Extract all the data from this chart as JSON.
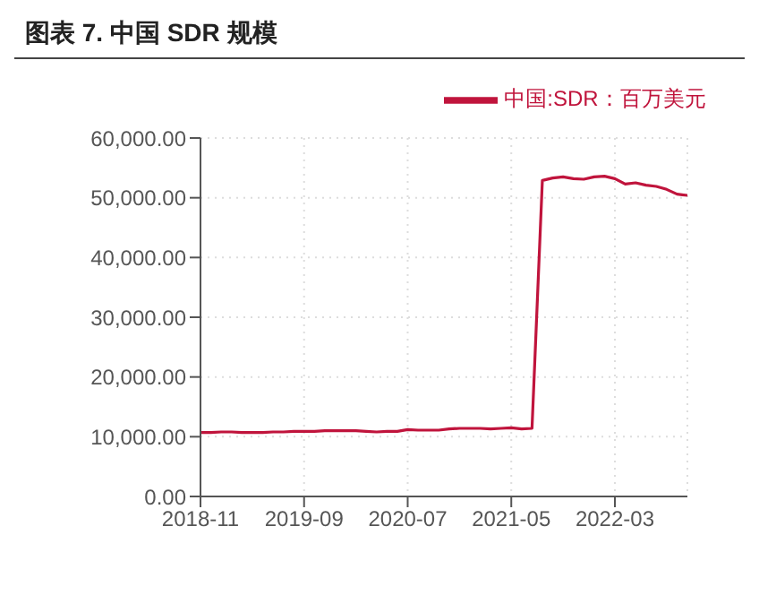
{
  "chart_data": {
    "type": "line",
    "title": "图表 7. 中国 SDR 规模",
    "x": [
      "2018-11",
      "2018-12",
      "2019-01",
      "2019-02",
      "2019-03",
      "2019-04",
      "2019-05",
      "2019-06",
      "2019-07",
      "2019-08",
      "2019-09",
      "2019-10",
      "2019-11",
      "2019-12",
      "2020-01",
      "2020-02",
      "2020-03",
      "2020-04",
      "2020-05",
      "2020-06",
      "2020-07",
      "2020-08",
      "2020-09",
      "2020-10",
      "2020-11",
      "2020-12",
      "2021-01",
      "2021-02",
      "2021-03",
      "2021-04",
      "2021-05",
      "2021-06",
      "2021-07",
      "2021-08",
      "2021-09",
      "2021-10",
      "2021-11",
      "2021-12",
      "2022-01",
      "2022-02",
      "2022-03",
      "2022-04",
      "2022-05",
      "2022-06",
      "2022-07",
      "2022-08",
      "2022-09",
      "2022-10"
    ],
    "series": [
      {
        "name": "中国:SDR：百万美元",
        "color": "#c0143c",
        "values": [
          10700,
          10700,
          10800,
          10800,
          10700,
          10700,
          10700,
          10800,
          10800,
          10900,
          10900,
          10900,
          11000,
          11000,
          11000,
          11000,
          10900,
          10800,
          10900,
          10900,
          11200,
          11100,
          11100,
          11100,
          11300,
          11400,
          11400,
          11400,
          11300,
          11400,
          11500,
          11300,
          11400,
          52900,
          53300,
          53500,
          53200,
          53100,
          53500,
          53600,
          53200,
          52300,
          52500,
          52100,
          51900,
          51400,
          50600,
          50400
        ]
      }
    ],
    "xlim": [
      "2018-11",
      "2022-10"
    ],
    "xticks": [
      "2018-11",
      "2019-09",
      "2020-07",
      "2021-05",
      "2022-03"
    ],
    "ylim": [
      0,
      60000
    ],
    "yticks": [
      {
        "value": 0,
        "label": "0.00"
      },
      {
        "value": 10000,
        "label": "10,000.00"
      },
      {
        "value": 20000,
        "label": "20,000.00"
      },
      {
        "value": 30000,
        "label": "30,000.00"
      },
      {
        "value": 40000,
        "label": "40,000.00"
      },
      {
        "value": 50000,
        "label": "50,000.00"
      },
      {
        "value": 60000,
        "label": "60,000.00"
      }
    ],
    "grid": true,
    "legend": "top",
    "marker": "none",
    "line_style": "solid"
  }
}
